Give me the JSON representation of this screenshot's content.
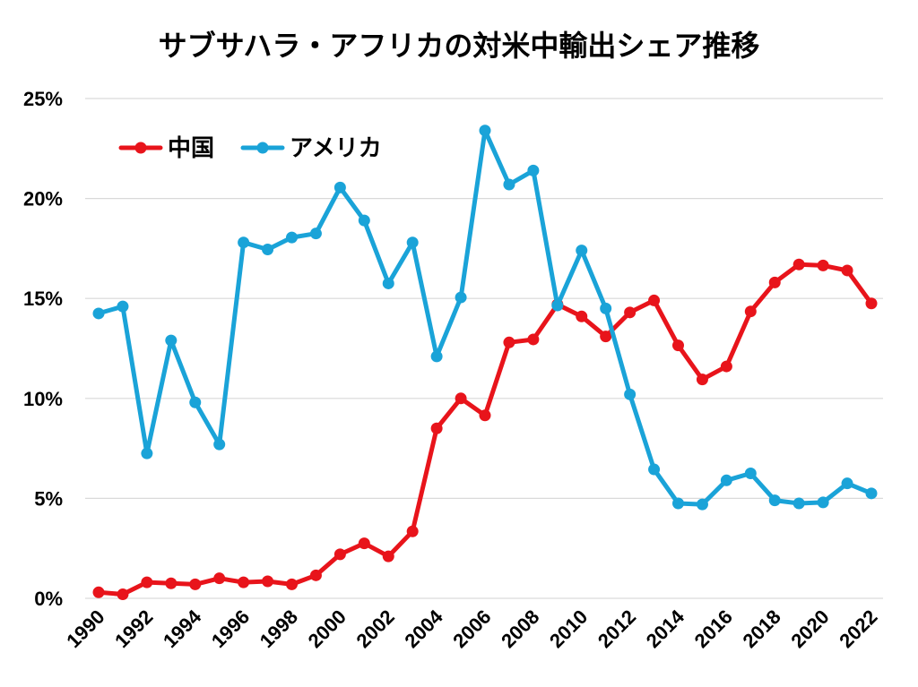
{
  "chart_data": {
    "type": "line",
    "title": "サブサハラ・アフリカの対米中輸出シェア推移",
    "xlabel": "",
    "ylabel": "",
    "x": [
      1990,
      1991,
      1992,
      1993,
      1994,
      1995,
      1996,
      1997,
      1998,
      1999,
      2000,
      2001,
      2002,
      2003,
      2004,
      2005,
      2006,
      2007,
      2008,
      2009,
      2010,
      2011,
      2012,
      2013,
      2014,
      2015,
      2016,
      2017,
      2018,
      2019,
      2020,
      2021,
      2022
    ],
    "xticks": [
      1990,
      1992,
      1994,
      1996,
      1998,
      2000,
      2002,
      2004,
      2006,
      2008,
      2010,
      2012,
      2014,
      2016,
      2018,
      2020,
      2022
    ],
    "xlim": [
      1990,
      2022
    ],
    "ylim": [
      0,
      25
    ],
    "yticks": [
      0,
      5,
      10,
      15,
      20,
      25
    ],
    "ytick_suffix": "%",
    "grid": "horizontal",
    "legend_position": "top-left",
    "series": [
      {
        "name": "中国",
        "color": "#e8141b",
        "values": [
          0.3,
          0.2,
          0.8,
          0.75,
          0.7,
          1.0,
          0.8,
          0.85,
          0.7,
          1.15,
          2.2,
          2.75,
          2.1,
          3.35,
          8.5,
          10.0,
          9.15,
          12.8,
          12.95,
          14.7,
          14.1,
          13.1,
          14.3,
          14.9,
          12.65,
          10.95,
          11.6,
          14.35,
          15.8,
          16.7,
          16.65,
          16.4,
          14.75
        ]
      },
      {
        "name": "アメリカ",
        "color": "#1aa3d8",
        "values": [
          14.25,
          14.6,
          7.25,
          12.9,
          9.8,
          7.7,
          17.8,
          17.45,
          18.05,
          18.25,
          20.55,
          18.9,
          15.75,
          17.8,
          12.1,
          15.05,
          23.4,
          20.7,
          21.4,
          14.65,
          17.4,
          14.5,
          10.2,
          6.45,
          4.75,
          4.7,
          5.9,
          6.25,
          4.9,
          4.75,
          4.8,
          5.75,
          5.25
        ]
      }
    ]
  }
}
